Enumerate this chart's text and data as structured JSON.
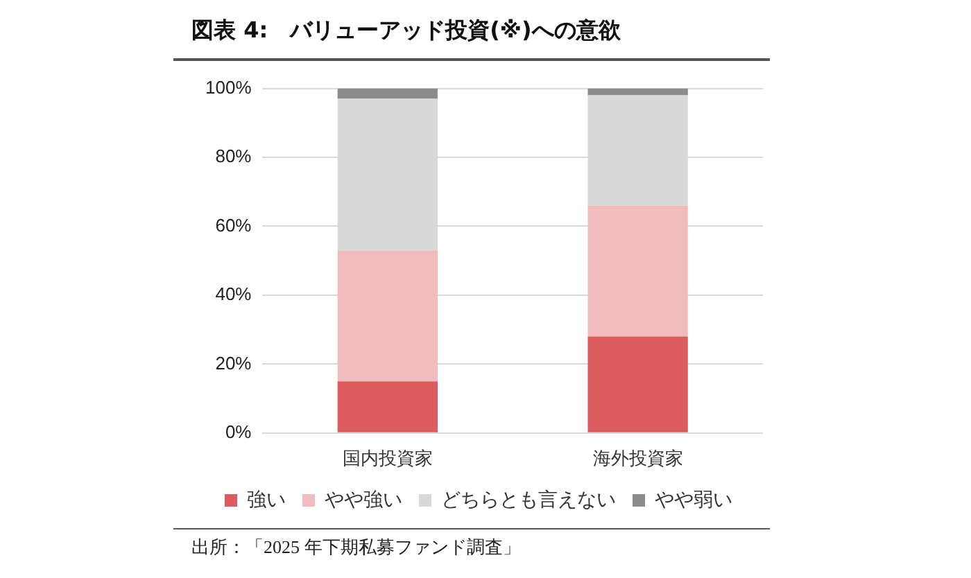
{
  "chart_data": {
    "type": "bar",
    "title": "図表 4:　バリューアッド投資(※)への意欲",
    "categories": [
      "国内投資家",
      "海外投資家"
    ],
    "stacked": true,
    "series": [
      {
        "name": "強い",
        "color": "#dc5b5e",
        "values": [
          15,
          28
        ]
      },
      {
        "name": "やや強い",
        "color": "#f0bcbd",
        "values": [
          38,
          38
        ]
      },
      {
        "name": "どちらとも言えない",
        "color": "#d9d9d9",
        "values": [
          44,
          32
        ]
      },
      {
        "name": "やや弱い",
        "color": "#8c8c8c",
        "values": [
          3,
          2
        ]
      }
    ],
    "ylim": [
      0,
      100
    ],
    "yticks": [
      {
        "value": 0,
        "label": "0%"
      },
      {
        "value": 20,
        "label": "20%"
      },
      {
        "value": 40,
        "label": "40%"
      },
      {
        "value": 60,
        "label": "60%"
      },
      {
        "value": 80,
        "label": "80%"
      },
      {
        "value": 100,
        "label": "100%"
      }
    ],
    "grid": "y",
    "legend": "bottom",
    "annotations": [
      "出所：「2025 年下期私募ファンド調査」"
    ]
  }
}
